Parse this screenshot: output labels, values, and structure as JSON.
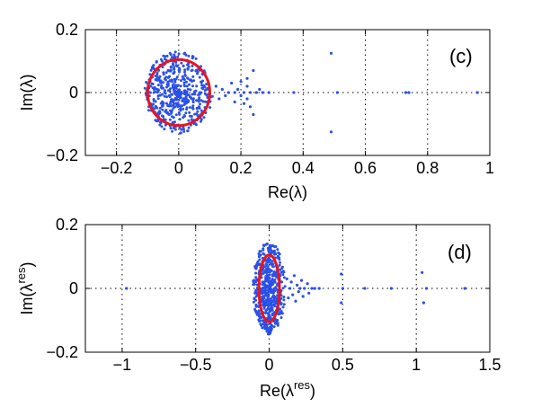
{
  "chart_data": [
    {
      "type": "scatter",
      "panel_label": "(c)",
      "xlabel": "Re(λ)",
      "ylabel": "Im(λ)",
      "xlim": [
        -0.3,
        1.0
      ],
      "ylim": [
        -0.2,
        0.2
      ],
      "xticks": [
        -0.2,
        0,
        0.2,
        0.4,
        0.6,
        0.8,
        1
      ],
      "xtick_labels": [
        "−0.2",
        "0",
        "0.2",
        "0.4",
        "0.6",
        "0.8",
        "1"
      ],
      "yticks": [
        -0.2,
        0,
        0.2
      ],
      "ytick_labels": [
        "−0.2",
        "0",
        "0.2"
      ],
      "grid": true,
      "marker_color": "#2b50e8",
      "ellipse": {
        "center": [
          0.0,
          0.0
        ],
        "radius_x": 0.1,
        "radius_y": 0.105,
        "color": "#e8141c"
      },
      "cloud": {
        "center": [
          0.0,
          0.0
        ],
        "radius_x": 0.11,
        "radius_y": 0.13,
        "count": 520
      },
      "outliers": [
        [
          0.12,
          0.02
        ],
        [
          0.13,
          -0.02
        ],
        [
          0.14,
          0.01
        ],
        [
          0.15,
          -0.01
        ],
        [
          0.16,
          0.0
        ],
        [
          0.17,
          0.03
        ],
        [
          0.18,
          -0.03
        ],
        [
          0.18,
          0.0
        ],
        [
          0.19,
          0.01
        ],
        [
          0.2,
          -0.01
        ],
        [
          0.21,
          0.0
        ],
        [
          0.22,
          0.02
        ],
        [
          0.22,
          -0.02
        ],
        [
          0.23,
          0.0
        ],
        [
          0.24,
          0.07
        ],
        [
          0.24,
          -0.07
        ],
        [
          0.25,
          0.0
        ],
        [
          0.26,
          0.01
        ],
        [
          0.27,
          0.0
        ],
        [
          0.29,
          0.0
        ],
        [
          0.22,
          0.045
        ],
        [
          0.23,
          -0.045
        ],
        [
          0.2,
          0.035
        ],
        [
          0.21,
          -0.035
        ],
        [
          0.37,
          0.0
        ],
        [
          0.49,
          0.125
        ],
        [
          0.49,
          -0.125
        ],
        [
          0.51,
          0.0
        ],
        [
          0.73,
          0.0
        ],
        [
          0.74,
          0.0
        ],
        [
          0.96,
          0.0
        ]
      ]
    },
    {
      "type": "scatter",
      "panel_label": "(d)",
      "xlabel_base": "Re(λ",
      "xlabel_sup": "res",
      "xlabel_close": ")",
      "ylabel_base": "Im(λ",
      "ylabel_sup": "res",
      "ylabel_close": ")",
      "xlim": [
        -1.25,
        1.5
      ],
      "ylim": [
        -0.2,
        0.2
      ],
      "xticks": [
        -1,
        -0.5,
        0,
        0.5,
        1,
        1.5
      ],
      "xtick_labels": [
        "−1",
        "−0.5",
        "0",
        "0.5",
        "1",
        "1.5"
      ],
      "yticks": [
        -0.2,
        0,
        0.2
      ],
      "ytick_labels": [
        "−0.2",
        "0",
        "0.2"
      ],
      "grid": true,
      "marker_color": "#2b50e8",
      "ellipse": {
        "center": [
          0.0,
          0.0
        ],
        "radius_x": 0.07,
        "radius_y": 0.105,
        "color": "#e8141c"
      },
      "cloud": {
        "center": [
          0.0,
          0.0
        ],
        "radius_x": 0.11,
        "radius_y": 0.145,
        "count": 520
      },
      "outliers": [
        [
          0.12,
          0.03
        ],
        [
          0.13,
          -0.03
        ],
        [
          0.14,
          0.0
        ],
        [
          0.15,
          0.02
        ],
        [
          0.16,
          -0.02
        ],
        [
          0.17,
          0.04
        ],
        [
          0.18,
          -0.04
        ],
        [
          0.19,
          0.01
        ],
        [
          0.2,
          -0.01
        ],
        [
          0.21,
          0.0
        ],
        [
          0.22,
          0.025
        ],
        [
          0.23,
          -0.025
        ],
        [
          0.24,
          0.0
        ],
        [
          0.26,
          0.015
        ],
        [
          0.27,
          -0.015
        ],
        [
          0.29,
          0.0
        ],
        [
          0.31,
          0.0
        ],
        [
          0.34,
          0.0
        ],
        [
          -0.97,
          0.0
        ],
        [
          0.49,
          0.045
        ],
        [
          0.49,
          -0.045
        ],
        [
          0.5,
          0.0
        ],
        [
          0.65,
          0.0
        ],
        [
          0.83,
          0.0
        ],
        [
          1.04,
          0.05
        ],
        [
          1.05,
          -0.045
        ],
        [
          1.07,
          0.0
        ],
        [
          1.33,
          0.0
        ]
      ]
    }
  ]
}
